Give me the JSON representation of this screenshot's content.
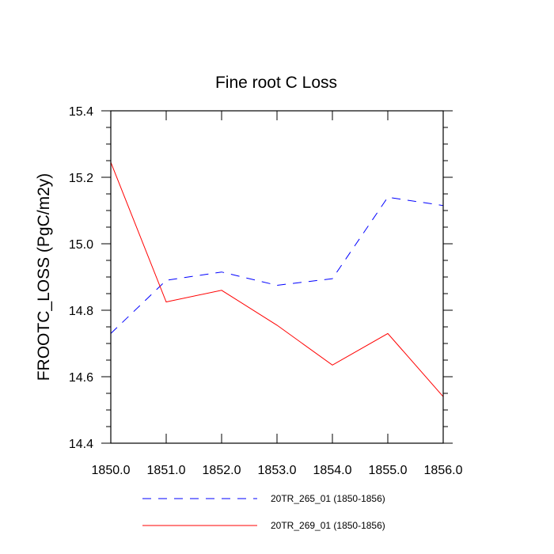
{
  "chart_data": {
    "type": "line",
    "title": "Fine root C Loss",
    "xlabel": "",
    "ylabel": "FROOTC_LOSS  (PgC/m2y)",
    "x": [
      1850,
      1851,
      1852,
      1853,
      1854,
      1855,
      1856
    ],
    "x_tick_labels": [
      "1850.0",
      "1851.0",
      "1852.0",
      "1853.0",
      "1854.0",
      "1855.0",
      "1856.0"
    ],
    "y_tick_labels": [
      "14.4",
      "14.6",
      "14.8",
      "15.0",
      "15.2",
      "15.4"
    ],
    "xlim": [
      1850,
      1856
    ],
    "ylim": [
      14.4,
      15.4
    ],
    "y_major_ticks": [
      14.4,
      14.6,
      14.8,
      15.0,
      15.2,
      15.4
    ],
    "grid": false,
    "legend_position": "bottom",
    "series": [
      {
        "name": "20TR_265_01 (1850-1856)",
        "color": "#0000ff",
        "dash": "dashed",
        "values": [
          14.73,
          14.89,
          14.915,
          14.875,
          14.895,
          15.14,
          15.115
        ]
      },
      {
        "name": "20TR_269_01 (1850-1856)",
        "color": "#ff0000",
        "dash": "solid",
        "values": [
          15.245,
          14.825,
          14.86,
          14.755,
          14.635,
          14.73,
          14.54
        ]
      }
    ]
  }
}
